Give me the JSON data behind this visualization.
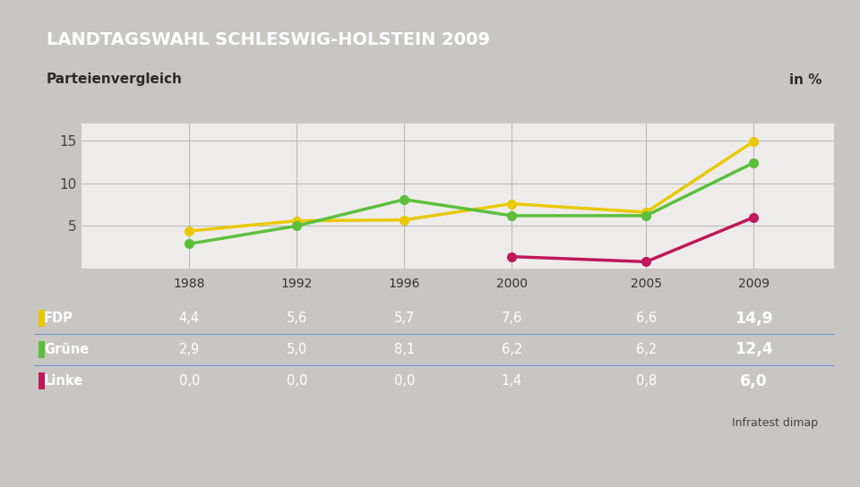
{
  "title": "LANDTAGSWAHL SCHLESWIG-HOLSTEIN 2009",
  "subtitle": "Parteienvergleich",
  "unit": "in %",
  "source": "Infratest dimap",
  "years": [
    1988,
    1992,
    1996,
    2000,
    2005,
    2009
  ],
  "series": [
    {
      "name": "FDP",
      "values": [
        4.4,
        5.6,
        5.7,
        7.6,
        6.6,
        14.9
      ],
      "color": "#E8C800",
      "swatch_color": "#E8C800"
    },
    {
      "name": "Grüne",
      "values": [
        2.9,
        5.0,
        8.1,
        6.2,
        6.2,
        12.4
      ],
      "color": "#5BBF3C",
      "swatch_color": "#5BBF3C"
    },
    {
      "name": "Linke",
      "values": [
        0.0,
        0.0,
        0.0,
        1.4,
        0.8,
        6.0
      ],
      "color": "#C0185A",
      "swatch_color": "#C0185A"
    }
  ],
  "title_bg_color": "#1e3a78",
  "title_text_color": "#ffffff",
  "subtitle_bg_color": "#f2f0ed",
  "subtitle_text_color": "#2a2a2a",
  "chart_bg_color": "#eeecea",
  "outer_bg_color": "#c8c6c3",
  "table_bg_color": "#4a72b8",
  "table_text_color": "#ffffff",
  "table_header_bg": "#f2f0ed",
  "table_header_text": "#2a2a2a",
  "yticks": [
    5,
    10,
    15
  ],
  "ylim": [
    0,
    17
  ],
  "xlim": [
    1984,
    2012
  ],
  "grid_color": "#bbbbbb",
  "line_width": 2.5,
  "marker_size": 7
}
